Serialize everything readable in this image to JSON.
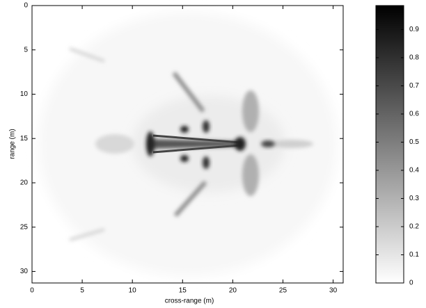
{
  "chart_data": {
    "type": "image",
    "xlabel": "cross-range (m)",
    "ylabel": "range (m)",
    "xlim": [
      0,
      31
    ],
    "xticks": [
      0,
      5,
      10,
      15,
      20,
      25,
      30
    ],
    "ylim": [
      31.3,
      0
    ],
    "yticks": [
      0,
      5,
      10,
      15,
      20,
      25,
      30
    ],
    "colorbar": {
      "clim": [
        0,
        0.985
      ],
      "ticks": [
        0,
        0.1,
        0.2,
        0.3,
        0.4,
        0.5,
        0.6,
        0.7,
        0.8,
        0.9
      ],
      "colors": [
        "#ffffff",
        "#000000"
      ]
    }
  }
}
